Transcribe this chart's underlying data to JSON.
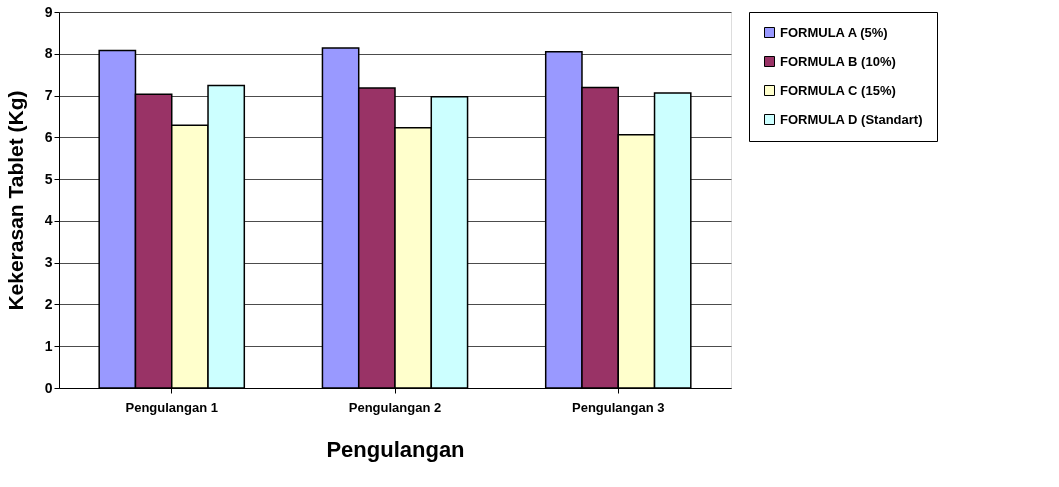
{
  "chart_data": {
    "type": "bar",
    "xlabel": "Pengulangan",
    "ylabel": "Kekerasan Tablet (Kg)",
    "categories": [
      "Pengulangan 1",
      "Pengulangan 2",
      "Pengulangan 3"
    ],
    "series": [
      {
        "name": "FORMULA A (5%)",
        "color": "#9999ff",
        "values": [
          8.08,
          8.14,
          8.05
        ]
      },
      {
        "name": "FORMULA B (10%)",
        "color": "#993366",
        "values": [
          7.03,
          7.18,
          7.19
        ]
      },
      {
        "name": "FORMULA C (15%)",
        "color": "#ffffcc",
        "values": [
          6.29,
          6.23,
          6.06
        ]
      },
      {
        "name": "FORMULA D (Standart)",
        "color": "#ccffff",
        "values": [
          7.24,
          6.97,
          7.06
        ]
      }
    ],
    "ylim": [
      0,
      9
    ],
    "yticks": [
      0,
      1,
      2,
      3,
      4,
      5,
      6,
      7,
      8,
      9
    ],
    "grid": "y",
    "legend": "right"
  }
}
